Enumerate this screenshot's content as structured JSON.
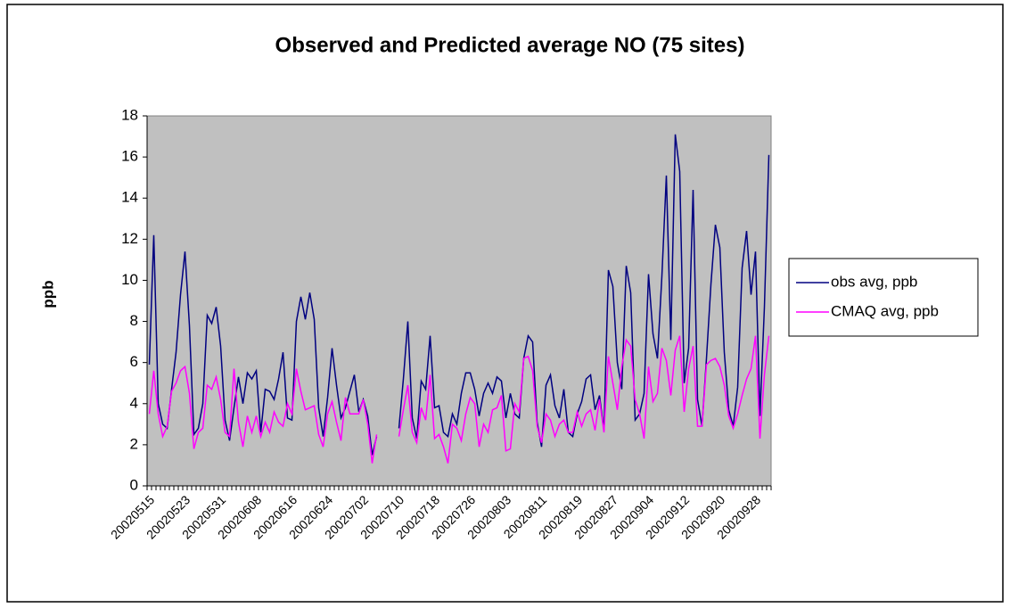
{
  "chart_data": {
    "type": "line",
    "title": "Observed and Predicted average NO (75 sites)",
    "y_label": "ppb",
    "categories": [
      "20020515",
      null,
      null,
      null,
      null,
      null,
      null,
      null,
      "20020523",
      null,
      null,
      null,
      null,
      null,
      null,
      null,
      "20020531",
      null,
      null,
      null,
      null,
      null,
      null,
      null,
      "20020608",
      null,
      null,
      null,
      null,
      null,
      null,
      null,
      "20020616",
      null,
      null,
      null,
      null,
      null,
      null,
      null,
      "20020624",
      null,
      null,
      null,
      null,
      null,
      null,
      null,
      "20020702",
      null,
      null,
      null,
      null,
      null,
      null,
      null,
      "20020710",
      null,
      null,
      null,
      null,
      null,
      null,
      null,
      "20020718",
      null,
      null,
      null,
      null,
      null,
      null,
      null,
      "20020726",
      null,
      null,
      null,
      null,
      null,
      null,
      null,
      "20020803",
      null,
      null,
      null,
      null,
      null,
      null,
      null,
      "20020811",
      null,
      null,
      null,
      null,
      null,
      null,
      null,
      "20020819",
      null,
      null,
      null,
      null,
      null,
      null,
      null,
      "20020827",
      null,
      null,
      null,
      null,
      null,
      null,
      null,
      "20020904",
      null,
      null,
      null,
      null,
      null,
      null,
      null,
      "20020912",
      null,
      null,
      null,
      null,
      null,
      null,
      null,
      "20020920",
      null,
      null,
      null,
      null,
      null,
      null,
      null,
      "20020928",
      null,
      null,
      null
    ],
    "series": [
      {
        "name": "obs avg, ppb",
        "color": "#000080",
        "values": [
          5.9,
          12.2,
          4.0,
          3.0,
          2.8,
          4.7,
          6.5,
          9.3,
          11.4,
          7.8,
          2.5,
          2.8,
          4.0,
          8.3,
          7.9,
          8.7,
          6.8,
          3.2,
          2.2,
          3.8,
          5.3,
          4.0,
          5.5,
          5.2,
          5.6,
          2.6,
          4.7,
          4.6,
          4.2,
          5.2,
          6.5,
          3.3,
          3.2,
          8.0,
          9.2,
          8.1,
          9.4,
          8.1,
          3.8,
          2.4,
          4.3,
          6.7,
          4.9,
          3.3,
          3.8,
          4.6,
          5.4,
          3.6,
          4.2,
          3.4,
          1.5,
          2.4,
          null,
          null,
          null,
          null,
          2.8,
          5.2,
          8.0,
          3.3,
          2.3,
          5.1,
          4.7,
          7.3,
          3.8,
          3.9,
          2.6,
          2.4,
          3.5,
          3.0,
          4.5,
          5.5,
          5.5,
          4.7,
          3.4,
          4.5,
          5.0,
          4.5,
          5.3,
          5.1,
          3.3,
          4.5,
          3.5,
          3.3,
          6.2,
          7.3,
          7.0,
          3.1,
          1.9,
          4.9,
          5.4,
          3.9,
          3.3,
          4.7,
          2.6,
          2.4,
          3.5,
          4.1,
          5.2,
          5.4,
          3.7,
          4.4,
          2.7,
          10.5,
          9.7,
          6.0,
          4.7,
          10.7,
          9.4,
          3.2,
          3.5,
          4.5,
          10.3,
          7.4,
          6.2,
          10.2,
          15.1,
          7.1,
          17.1,
          15.3,
          5.0,
          6.7,
          14.4,
          4.2,
          2.9,
          6.2,
          9.8,
          12.7,
          11.6,
          6.5,
          3.7,
          2.9,
          4.8,
          10.6,
          12.4,
          9.3,
          11.4,
          3.4,
          8.7,
          16.1
        ]
      },
      {
        "name": "CMAQ avg, ppb",
        "color": "#ff00ff",
        "values": [
          3.5,
          5.6,
          3.5,
          2.4,
          2.9,
          4.6,
          5.0,
          5.6,
          5.8,
          4.5,
          1.8,
          2.6,
          2.8,
          4.9,
          4.7,
          5.3,
          4.2,
          2.6,
          2.4,
          5.7,
          3.1,
          1.9,
          3.4,
          2.6,
          3.4,
          2.4,
          3.1,
          2.6,
          3.6,
          3.1,
          2.9,
          4.0,
          3.5,
          5.7,
          4.6,
          3.7,
          3.8,
          3.9,
          2.5,
          1.9,
          3.5,
          4.1,
          3.1,
          2.2,
          4.3,
          3.5,
          3.5,
          3.5,
          4.2,
          3.0,
          1.1,
          2.5,
          null,
          null,
          null,
          null,
          2.4,
          3.7,
          4.9,
          2.6,
          2.1,
          3.8,
          3.2,
          5.4,
          2.3,
          2.5,
          1.9,
          1.1,
          3.0,
          2.8,
          2.2,
          3.5,
          4.3,
          4.0,
          1.9,
          3.0,
          2.6,
          3.7,
          3.8,
          4.4,
          1.7,
          1.8,
          4.0,
          3.6,
          6.2,
          6.3,
          5.6,
          2.9,
          2.1,
          3.5,
          3.2,
          2.4,
          3.0,
          3.2,
          2.6,
          2.6,
          3.6,
          2.9,
          3.5,
          3.7,
          2.7,
          4.2,
          2.6,
          6.3,
          5.0,
          3.7,
          5.8,
          7.1,
          6.8,
          4.2,
          3.5,
          2.3,
          5.8,
          4.1,
          4.5,
          6.7,
          6.1,
          4.4,
          6.6,
          7.3,
          3.6,
          5.7,
          6.8,
          2.9,
          2.9,
          5.9,
          6.1,
          6.2,
          5.8,
          4.9,
          3.4,
          2.8,
          3.5,
          4.4,
          5.2,
          5.7,
          7.3,
          2.3,
          5.4,
          7.3
        ]
      }
    ],
    "ylim": [
      0,
      18
    ],
    "yticks": [
      0,
      2,
      4,
      6,
      8,
      10,
      12,
      14,
      16,
      18
    ],
    "grid": false,
    "legend": "right",
    "plot_background": "#c0c0c0"
  }
}
